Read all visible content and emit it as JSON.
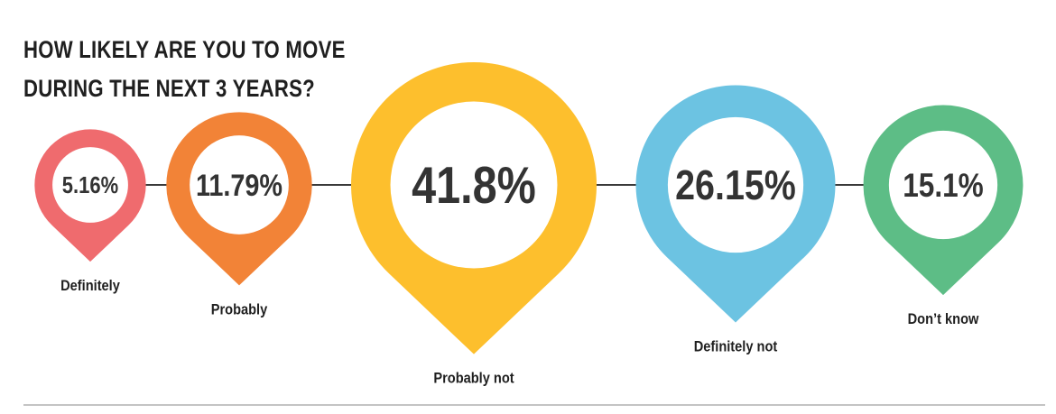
{
  "title_line1": "HOW LIKELY ARE YOU TO MOVE",
  "title_line2": "DURING THE NEXT 3 YEARS?",
  "chart_data": {
    "type": "bubble-pin",
    "title": "HOW LIKELY ARE YOU TO MOVE DURING THE NEXT 3 YEARS?",
    "categories": [
      "Definitely",
      "Probably",
      "Probably not",
      "Definitely not",
      "Don’t know"
    ],
    "values": [
      5.16,
      11.79,
      41.8,
      26.15,
      15.1
    ],
    "value_labels": [
      "5.16%",
      "11.79%",
      "41.8%",
      "26.15%",
      "15.1%"
    ],
    "colors": [
      "#EF6B6E",
      "#F28337",
      "#FDBF2D",
      "#6CC3E2",
      "#5DBD86"
    ],
    "connector_color": "#3a3a3a"
  }
}
